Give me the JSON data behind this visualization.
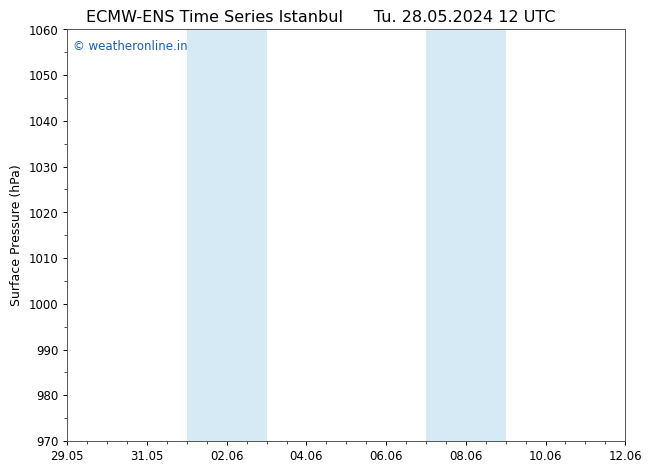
{
  "title_left": "ECMW-ENS Time Series Istanbul",
  "title_right": "Tu. 28.05.2024 12 UTC",
  "ylabel": "Surface Pressure (hPa)",
  "ylim": [
    970,
    1060
  ],
  "yticks": [
    970,
    980,
    990,
    1000,
    1010,
    1020,
    1030,
    1040,
    1050,
    1060
  ],
  "xtick_labels": [
    "29.05",
    "31.05",
    "02.06",
    "04.06",
    "06.06",
    "08.06",
    "10.06",
    "12.06"
  ],
  "xtick_positions": [
    0,
    2,
    4,
    6,
    8,
    10,
    12,
    14
  ],
  "x_start": 0,
  "x_end": 14,
  "shaded_regions": [
    {
      "start": 3.0,
      "end": 5.0
    },
    {
      "start": 9.0,
      "end": 11.0
    }
  ],
  "shade_color": "#d6eaf5",
  "background_color": "#ffffff",
  "plot_bg_color": "#ffffff",
  "watermark_text": "© weatheronline.in",
  "watermark_color": "#1a5eb5",
  "title_fontsize": 11.5,
  "ylabel_fontsize": 9,
  "tick_fontsize": 8.5,
  "watermark_fontsize": 8.5,
  "spine_color": "#555555"
}
